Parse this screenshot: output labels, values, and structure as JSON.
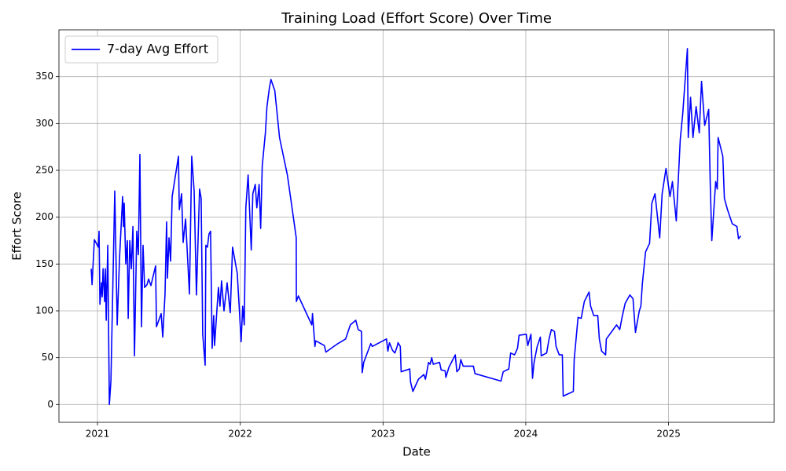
{
  "chart_data": {
    "type": "line",
    "title": "Training Load (Effort Score) Over Time",
    "x_label": "Date",
    "y_label": "Effort Score",
    "xlim": [
      2020.73,
      2025.74
    ],
    "ylim": [
      -19,
      400
    ],
    "xticks": [
      2021,
      2022,
      2023,
      2024,
      2025
    ],
    "yticks": [
      0,
      50,
      100,
      150,
      200,
      250,
      300,
      350
    ],
    "grid": true,
    "legend": "upper left",
    "x": [
      2020.956,
      2020.962,
      2020.978,
      2021.006,
      2021.011,
      2021.017,
      2021.028,
      2021.033,
      2021.039,
      2021.05,
      2021.055,
      2021.061,
      2021.072,
      2021.083,
      2021.094,
      2021.121,
      2021.138,
      2021.154,
      2021.176,
      2021.182,
      2021.187,
      2021.198,
      2021.209,
      2021.215,
      2021.226,
      2021.237,
      2021.248,
      2021.259,
      2021.275,
      2021.286,
      2021.297,
      2021.308,
      2021.319,
      2021.33,
      2021.347,
      2021.358,
      2021.374,
      2021.407,
      2021.413,
      2021.446,
      2021.457,
      2021.473,
      2021.484,
      2021.49,
      2021.501,
      2021.512,
      2021.523,
      2021.567,
      2021.573,
      2021.589,
      2021.6,
      2021.617,
      2021.644,
      2021.66,
      2021.677,
      2021.693,
      2021.715,
      2021.726,
      2021.737,
      2021.754,
      2021.759,
      2021.77,
      2021.781,
      2021.792,
      2021.803,
      2021.814,
      2021.82,
      2021.836,
      2021.847,
      2021.858,
      2021.869,
      2021.886,
      2021.908,
      2021.93,
      2021.946,
      2021.979,
      2021.996,
      2022.006,
      2022.017,
      2022.028,
      2022.039,
      2022.055,
      2022.077,
      2022.088,
      2022.105,
      2022.116,
      2022.132,
      2022.143,
      2022.154,
      2022.176,
      2022.187,
      2022.204,
      2022.215,
      2022.242,
      2022.275,
      2022.33,
      2022.358,
      2022.392,
      2022.393,
      2022.407,
      2022.501,
      2022.506,
      2022.523,
      2022.529,
      2022.589,
      2022.6,
      2022.683,
      2022.738,
      2022.771,
      2022.809,
      2022.826,
      2022.849,
      2022.854,
      2022.865,
      2022.914,
      2022.925,
      2023.024,
      2023.034,
      2023.045,
      2023.066,
      2023.083,
      2023.099,
      2023.105,
      2023.121,
      2023.127,
      2023.187,
      2023.193,
      2023.209,
      2023.248,
      2023.286,
      2023.297,
      2023.319,
      2023.33,
      2023.341,
      2023.352,
      2023.396,
      2023.407,
      2023.435,
      2023.44,
      2023.462,
      2023.479,
      2023.506,
      2023.517,
      2023.534,
      2023.545,
      2023.561,
      2023.633,
      2023.644,
      2023.826,
      2023.842,
      2023.881,
      2023.894,
      2023.921,
      2023.942,
      2023.953,
      2024.003,
      2024.014,
      2024.036,
      2024.047,
      2024.058,
      2024.08,
      2024.102,
      2024.108,
      2024.146,
      2024.163,
      2024.179,
      2024.201,
      2024.212,
      2024.234,
      2024.256,
      2024.262,
      2024.333,
      2024.339,
      2024.366,
      2024.388,
      2024.41,
      2024.443,
      2024.454,
      2024.476,
      2024.504,
      2024.515,
      2024.531,
      2024.559,
      2024.564,
      2024.636,
      2024.658,
      2024.674,
      2024.696,
      2024.729,
      2024.751,
      2024.768,
      2024.795,
      2024.806,
      2024.817,
      2024.839,
      2024.867,
      2024.883,
      2024.905,
      2024.938,
      2024.955,
      2024.982,
      2025.01,
      2025.027,
      2025.054,
      2025.082,
      2025.099,
      2025.132,
      2025.138,
      2025.154,
      2025.171,
      2025.193,
      2025.215,
      2025.231,
      2025.253,
      2025.281,
      2025.292,
      2025.303,
      2025.33,
      2025.341,
      2025.347,
      2025.38,
      2025.391,
      2025.413,
      2025.446,
      2025.479,
      2025.49,
      2025.506
    ],
    "series": [
      {
        "name": "7-day Avg Effort",
        "color": "#0000ff",
        "values": [
          145,
          128,
          176,
          168,
          185,
          107,
          130,
          115,
          145,
          110,
          145,
          90,
          170,
          0,
          25,
          228,
          85,
          155,
          222,
          190,
          215,
          150,
          175,
          92,
          175,
          145,
          190,
          52,
          185,
          160,
          267,
          83,
          170,
          125,
          128,
          134,
          127,
          148,
          83,
          97,
          72,
          118,
          195,
          135,
          178,
          153,
          222,
          265,
          208,
          225,
          173,
          198,
          118,
          265,
          228,
          117,
          230,
          220,
          75,
          42,
          170,
          168,
          182,
          185,
          60,
          95,
          63,
          100,
          125,
          105,
          132,
          100,
          130,
          98,
          168,
          140,
          95,
          67,
          105,
          85,
          210,
          245,
          165,
          225,
          235,
          210,
          235,
          188,
          255,
          290,
          318,
          338,
          347,
          335,
          285,
          245,
          215,
          178,
          110,
          116,
          85,
          97,
          62,
          68,
          63,
          56,
          65,
          70,
          85,
          90,
          80,
          78,
          34,
          45,
          65,
          62,
          70,
          57,
          66,
          58,
          55,
          62,
          66,
          62,
          35,
          38,
          24,
          14,
          27,
          32,
          27,
          45,
          43,
          50,
          43,
          45,
          37,
          36,
          29,
          40,
          45,
          53,
          35,
          38,
          48,
          41,
          41,
          33,
          25,
          35,
          38,
          55,
          53,
          60,
          74,
          75,
          63,
          75,
          28,
          45,
          62,
          72,
          52,
          55,
          70,
          80,
          78,
          62,
          53,
          53,
          9,
          14,
          48,
          93,
          92,
          110,
          120,
          105,
          95,
          95,
          70,
          57,
          53,
          70,
          85,
          80,
          93,
          108,
          117,
          113,
          77,
          100,
          105,
          130,
          163,
          172,
          215,
          225,
          178,
          225,
          252,
          222,
          238,
          196,
          283,
          310,
          380,
          285,
          328,
          285,
          318,
          290,
          345,
          298,
          315,
          235,
          175,
          238,
          230,
          285,
          265,
          220,
          208,
          193,
          190,
          177,
          180
        ]
      }
    ]
  }
}
